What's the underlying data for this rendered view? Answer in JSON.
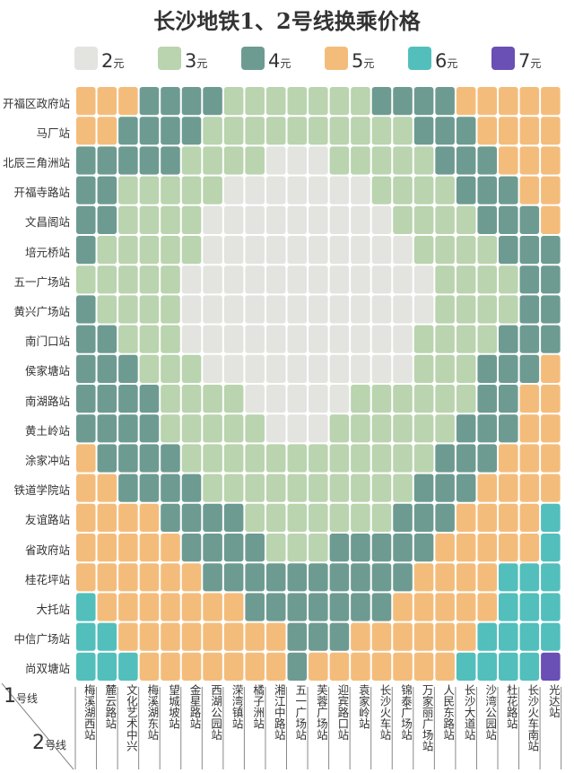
{
  "chart_data": {
    "type": "heatmap",
    "title": "长沙地铁1、2号线换乘价格",
    "legend": [
      {
        "value": 2,
        "num": "2",
        "unit": "元",
        "color": "#e3e4e0"
      },
      {
        "value": 3,
        "num": "3",
        "unit": "元",
        "color": "#b9d4ae"
      },
      {
        "value": 4,
        "num": "4",
        "unit": "元",
        "color": "#6d9b91"
      },
      {
        "value": 5,
        "num": "5",
        "unit": "元",
        "color": "#f4bc7b"
      },
      {
        "value": 6,
        "num": "6",
        "unit": "元",
        "color": "#52bfbc"
      },
      {
        "value": 7,
        "num": "7",
        "unit": "元",
        "color": "#6a4fb4"
      }
    ],
    "y_axis_num": "1",
    "y_axis_unit": "号线",
    "x_axis_num": "2",
    "x_axis_unit": "号线",
    "rows": [
      "开福区政府站",
      "马厂站",
      "北辰三角洲站",
      "开福寺路站",
      "文昌阁站",
      "培元桥站",
      "五一广场站",
      "黄兴广场站",
      "南门口站",
      "侯家塘站",
      "南湖路站",
      "黄土岭站",
      "涂家冲站",
      "铁道学院站",
      "友谊路站",
      "省政府站",
      "桂花坪站",
      "大托站",
      "中信广场站",
      "尚双塘站"
    ],
    "columns": [
      "梅溪湖西站",
      "麓云路站",
      "文化艺术中兴",
      "梅溪湖东站",
      "望城坡站",
      "金星路站",
      "西湖公园站",
      "溁湾镇站",
      "橘子洲站",
      "湘江中路站",
      "五一广场站",
      "芙蓉广场站",
      "迎宾路口站",
      "袁家岭站",
      "长沙火车站",
      "锦泰广场站",
      "万家丽广场站",
      "人民东路站",
      "长沙大道站",
      "沙湾公园站",
      "杜花路站",
      "长沙火车南站",
      "光达站"
    ],
    "values": [
      [
        5,
        5,
        5,
        4,
        4,
        4,
        4,
        3,
        3,
        3,
        3,
        3,
        3,
        3,
        4,
        4,
        4,
        4,
        5,
        5,
        5,
        5,
        5
      ],
      [
        5,
        5,
        4,
        4,
        4,
        4,
        3,
        3,
        3,
        3,
        3,
        3,
        3,
        3,
        3,
        3,
        4,
        4,
        4,
        5,
        5,
        5,
        5
      ],
      [
        4,
        4,
        4,
        4,
        4,
        3,
        3,
        3,
        3,
        2,
        2,
        2,
        3,
        3,
        3,
        3,
        3,
        4,
        4,
        4,
        5,
        5,
        5
      ],
      [
        4,
        4,
        3,
        3,
        3,
        3,
        3,
        2,
        2,
        2,
        2,
        2,
        2,
        2,
        3,
        3,
        3,
        3,
        4,
        4,
        4,
        5,
        5
      ],
      [
        4,
        4,
        3,
        3,
        3,
        3,
        2,
        2,
        2,
        2,
        2,
        2,
        2,
        2,
        2,
        3,
        3,
        3,
        3,
        4,
        4,
        4,
        5
      ],
      [
        4,
        3,
        3,
        3,
        3,
        3,
        2,
        2,
        2,
        2,
        2,
        2,
        2,
        2,
        2,
        2,
        3,
        3,
        3,
        3,
        4,
        4,
        4
      ],
      [
        3,
        3,
        3,
        3,
        3,
        2,
        2,
        2,
        2,
        2,
        2,
        2,
        2,
        2,
        2,
        2,
        2,
        3,
        3,
        3,
        3,
        4,
        4
      ],
      [
        4,
        3,
        3,
        3,
        3,
        2,
        2,
        2,
        2,
        2,
        2,
        2,
        2,
        2,
        2,
        2,
        2,
        3,
        3,
        3,
        3,
        4,
        4
      ],
      [
        4,
        4,
        3,
        3,
        3,
        2,
        2,
        2,
        2,
        2,
        2,
        2,
        2,
        2,
        2,
        2,
        3,
        3,
        3,
        3,
        4,
        4,
        4
      ],
      [
        4,
        4,
        4,
        3,
        3,
        3,
        2,
        2,
        2,
        2,
        2,
        2,
        2,
        2,
        2,
        2,
        3,
        3,
        3,
        4,
        4,
        4,
        5
      ],
      [
        4,
        4,
        4,
        4,
        3,
        3,
        3,
        3,
        2,
        2,
        2,
        2,
        2,
        3,
        3,
        3,
        3,
        3,
        3,
        4,
        4,
        5,
        5
      ],
      [
        4,
        4,
        4,
        4,
        3,
        3,
        3,
        3,
        3,
        2,
        2,
        2,
        3,
        3,
        3,
        3,
        3,
        3,
        4,
        4,
        4,
        5,
        5
      ],
      [
        5,
        4,
        4,
        4,
        4,
        3,
        3,
        3,
        3,
        3,
        3,
        3,
        3,
        3,
        3,
        3,
        3,
        4,
        4,
        4,
        5,
        5,
        5
      ],
      [
        5,
        5,
        4,
        4,
        4,
        4,
        3,
        3,
        3,
        3,
        3,
        3,
        3,
        3,
        3,
        3,
        4,
        4,
        4,
        5,
        5,
        5,
        5
      ],
      [
        5,
        5,
        5,
        5,
        4,
        4,
        4,
        4,
        3,
        3,
        3,
        3,
        3,
        3,
        3,
        4,
        4,
        4,
        5,
        5,
        5,
        5,
        6
      ],
      [
        5,
        5,
        5,
        5,
        5,
        4,
        4,
        4,
        4,
        3,
        3,
        3,
        4,
        4,
        4,
        4,
        4,
        5,
        5,
        5,
        5,
        5,
        6
      ],
      [
        5,
        5,
        5,
        5,
        5,
        5,
        4,
        4,
        4,
        4,
        4,
        4,
        4,
        4,
        4,
        4,
        5,
        5,
        5,
        5,
        6,
        6,
        6
      ],
      [
        6,
        5,
        5,
        5,
        5,
        5,
        5,
        5,
        4,
        4,
        4,
        4,
        4,
        4,
        4,
        5,
        5,
        5,
        5,
        5,
        6,
        6,
        6
      ],
      [
        6,
        6,
        5,
        5,
        5,
        5,
        5,
        5,
        5,
        5,
        4,
        4,
        4,
        5,
        5,
        5,
        5,
        5,
        5,
        6,
        6,
        6,
        6
      ],
      [
        6,
        6,
        6,
        5,
        5,
        5,
        5,
        5,
        5,
        5,
        4,
        5,
        5,
        5,
        5,
        5,
        5,
        5,
        6,
        6,
        6,
        6,
        7
      ]
    ]
  }
}
